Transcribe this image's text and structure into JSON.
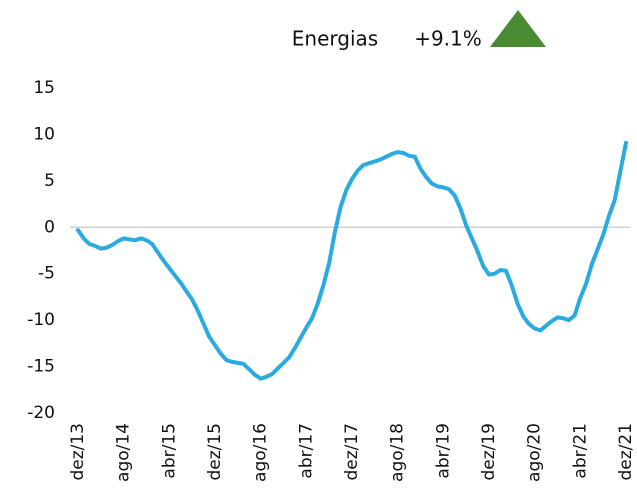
{
  "chart_data": {
    "type": "line",
    "title": "Energias",
    "change_label": "+9.1%",
    "categories": [
      "dez/13",
      null,
      null,
      null,
      null,
      null,
      null,
      null,
      "ago/14",
      null,
      null,
      null,
      null,
      null,
      null,
      null,
      "abr/15",
      null,
      null,
      null,
      null,
      null,
      null,
      null,
      "dez/15",
      null,
      null,
      null,
      null,
      null,
      null,
      null,
      "ago/16",
      null,
      null,
      null,
      null,
      null,
      null,
      null,
      "abr/17",
      null,
      null,
      null,
      null,
      null,
      null,
      null,
      "dez/17",
      null,
      null,
      null,
      null,
      null,
      null,
      null,
      "ago/18",
      null,
      null,
      null,
      null,
      null,
      null,
      null,
      "abr/19",
      null,
      null,
      null,
      null,
      null,
      null,
      null,
      "dez/19",
      null,
      null,
      null,
      null,
      null,
      null,
      null,
      "ago/20",
      null,
      null,
      null,
      null,
      null,
      null,
      null,
      "abr/21",
      null,
      null,
      null,
      null,
      null,
      null,
      null,
      "dez/21"
    ],
    "series": [
      {
        "color": "#29abe2",
        "values": [
          -0.3,
          -1.2,
          -1.8,
          -2.0,
          -2.3,
          -2.2,
          -1.9,
          -1.5,
          -1.2,
          -1.3,
          -1.4,
          -1.2,
          -1.4,
          -1.8,
          -2.7,
          -3.6,
          -4.4,
          -5.2,
          -6.0,
          -6.9,
          -7.8,
          -9.0,
          -10.4,
          -11.8,
          -12.7,
          -13.6,
          -14.3,
          -14.5,
          -14.6,
          -14.7,
          -15.3,
          -15.9,
          -16.3,
          -16.1,
          -15.8,
          -15.2,
          -14.6,
          -14.0,
          -13.0,
          -11.9,
          -10.8,
          -9.8,
          -8.2,
          -6.2,
          -3.8,
          -0.5,
          2.2,
          4.0,
          5.2,
          6.1,
          6.7,
          6.9,
          7.1,
          7.3,
          7.6,
          7.9,
          8.1,
          8.0,
          7.7,
          7.6,
          6.3,
          5.4,
          4.7,
          4.4,
          4.3,
          4.1,
          3.4,
          2.0,
          0.2,
          -1.2,
          -2.6,
          -4.2,
          -5.1,
          -5.0,
          -4.6,
          -4.7,
          -6.3,
          -8.2,
          -9.6,
          -10.4,
          -10.9,
          -11.1,
          -10.6,
          -10.1,
          -9.7,
          -9.8,
          -10.0,
          -9.5,
          -7.6,
          -6.1,
          -4.0,
          -2.4,
          -0.8,
          1.2,
          2.9,
          6.0,
          9.1
        ]
      }
    ],
    "ylim": [
      -20,
      15
    ],
    "yticks": [
      -20,
      -15,
      -10,
      -5,
      0,
      5,
      10,
      15
    ],
    "grid": false
  }
}
